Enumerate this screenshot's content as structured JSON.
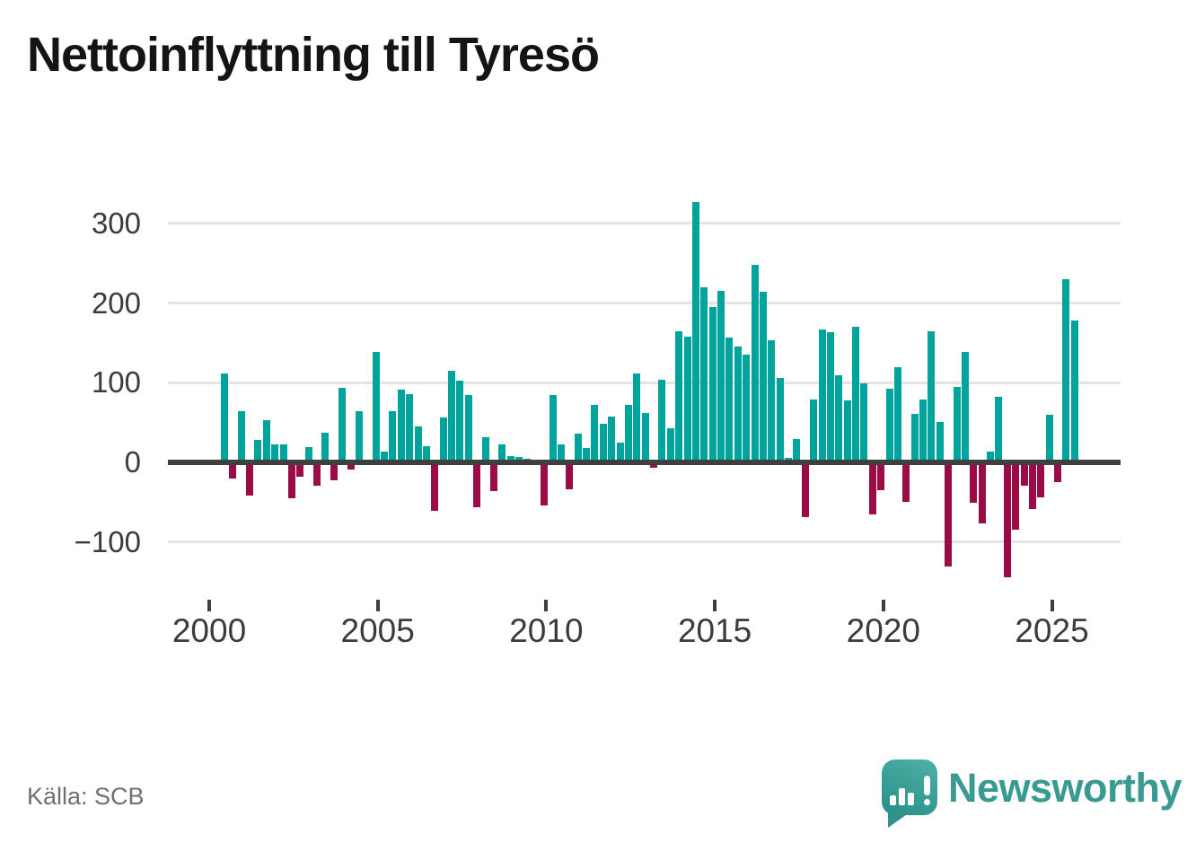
{
  "title": "Nettoinflyttning till Tyresö",
  "source": "Källa: SCB",
  "brand": {
    "name": "Newsworthy"
  },
  "chart_data": {
    "type": "bar",
    "title": "Nettoinflyttning till Tyresö",
    "xlabel": "",
    "ylabel": "",
    "ylim": [
      -160,
      345
    ],
    "grid": true,
    "legend": "none",
    "y_ticks": [
      300,
      200,
      100,
      0,
      -100
    ],
    "y_tick_labels": [
      "300",
      "200",
      "100",
      "0",
      "−100"
    ],
    "x_tick_years": [
      2000,
      2005,
      2010,
      2015,
      2020,
      2025
    ],
    "x_tick_labels": [
      "2000",
      "2005",
      "2010",
      "2015",
      "2020",
      "2025"
    ],
    "colors": {
      "positive": "#00a49c",
      "negative": "#9b0c46",
      "axis": "#404040",
      "grid": "#e4e4e4",
      "brand_teal": "#399a92"
    },
    "periods": [
      "2000K2",
      "2000K3",
      "2000K4",
      "2001K1",
      "2001K2",
      "2001K3",
      "2001K4",
      "2002K1",
      "2002K2",
      "2002K3",
      "2002K4",
      "2003K1",
      "2003K2",
      "2003K3",
      "2003K4",
      "2004K1",
      "2004K2",
      "2004K3",
      "2004K4",
      "2005K1",
      "2005K2",
      "2005K3",
      "2005K4",
      "2006K1",
      "2006K2",
      "2006K3",
      "2006K4",
      "2007K1",
      "2007K2",
      "2007K3",
      "2007K4",
      "2008K1",
      "2008K2",
      "2008K3",
      "2008K4",
      "2009K1",
      "2009K2",
      "2009K3",
      "2009K4",
      "2010K1",
      "2010K2",
      "2010K3",
      "2010K4",
      "2011K1",
      "2011K2",
      "2011K3",
      "2011K4",
      "2012K1",
      "2012K2",
      "2012K3",
      "2012K4",
      "2013K1",
      "2013K2",
      "2013K3",
      "2013K4",
      "2014K1",
      "2014K2",
      "2014K3",
      "2014K4",
      "2015K1",
      "2015K2",
      "2015K3",
      "2015K4",
      "2016K1",
      "2016K2",
      "2016K3",
      "2016K4",
      "2017K1",
      "2017K2",
      "2017K3",
      "2017K4",
      "2018K1",
      "2018K2",
      "2018K3",
      "2018K4",
      "2019K1",
      "2019K2",
      "2019K3",
      "2019K4",
      "2020K1",
      "2020K2",
      "2020K3",
      "2020K4",
      "2021K1",
      "2021K2",
      "2021K3",
      "2021K4",
      "2022K1",
      "2022K2",
      "2022K3",
      "2022K4",
      "2023K1",
      "2023K2",
      "2023K3",
      "2023K4",
      "2024K1",
      "2024K2",
      "2024K3",
      "2024K4",
      "2025K1",
      "2025K2",
      "2025K3"
    ],
    "values": [
      112,
      -19,
      64,
      -40,
      28,
      53,
      23,
      22,
      -44,
      -17,
      19,
      -28,
      37,
      -21,
      93,
      -8,
      64,
      0,
      139,
      14,
      64,
      91,
      86,
      45,
      20,
      -60,
      56,
      115,
      102,
      85,
      -55,
      31,
      -35,
      22,
      8,
      7,
      5,
      3,
      -53,
      85,
      23,
      -33,
      36,
      18,
      72,
      48,
      58,
      25,
      72,
      111,
      62,
      -6,
      104,
      43,
      165,
      158,
      327,
      220,
      195,
      215,
      157,
      145,
      135,
      248,
      214,
      153,
      106,
      6,
      29,
      -68,
      79,
      167,
      163,
      109,
      78,
      170,
      99,
      -64,
      -34,
      92,
      119,
      -48,
      61,
      79,
      164,
      51,
      -130,
      95,
      139,
      -50,
      -75,
      14,
      82,
      -143,
      -83,
      -28,
      -58,
      -43,
      60,
      -24,
      230,
      178
    ]
  }
}
